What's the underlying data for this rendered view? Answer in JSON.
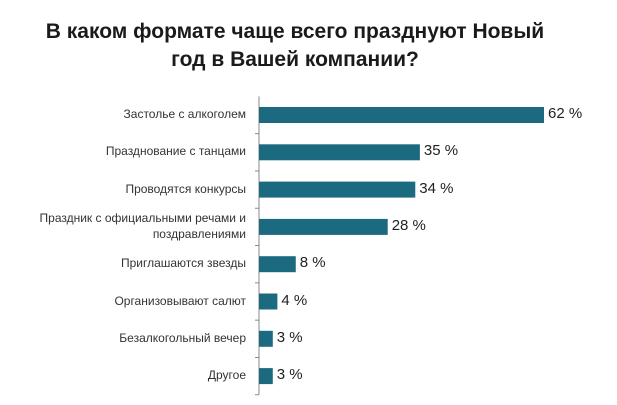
{
  "title": {
    "line1": "В каком формате чаще всего празднуют Новый",
    "line2": "год в Вашей компании?"
  },
  "colors": {
    "bar": "#1c6a80",
    "axis": "#888888"
  },
  "chart_data": {
    "type": "bar",
    "orientation": "horizontal",
    "title": "В каком формате чаще всего празднуют Новый год в Вашей компании?",
    "categories": [
      "Застолье с алкоголем",
      "Празднование с танцами",
      "Проводятся конкурсы",
      "Праздник с официальными речами и поздравлениями",
      "Приглашаются звезды",
      "Организовывают салют",
      "Безалкогольный вечер",
      "Другое"
    ],
    "category_lines": [
      [
        "Застолье с алкоголем"
      ],
      [
        "Празднование с танцами"
      ],
      [
        "Проводятся конкурсы"
      ],
      [
        "Праздник с официальными речами и",
        "поздравлениями"
      ],
      [
        "Приглашаются звезды"
      ],
      [
        "Организовывают салют"
      ],
      [
        "Безалкогольный вечер"
      ],
      [
        "Другое"
      ]
    ],
    "values": [
      62,
      35,
      34,
      28,
      8,
      4,
      3,
      3
    ],
    "value_labels": [
      "62 %",
      "35 %",
      "34 %",
      "28 %",
      "8 %",
      "4 %",
      "3 %",
      "3 %"
    ],
    "unit": "%",
    "xlim": [
      0,
      62
    ],
    "grid": false,
    "legend": "none"
  }
}
